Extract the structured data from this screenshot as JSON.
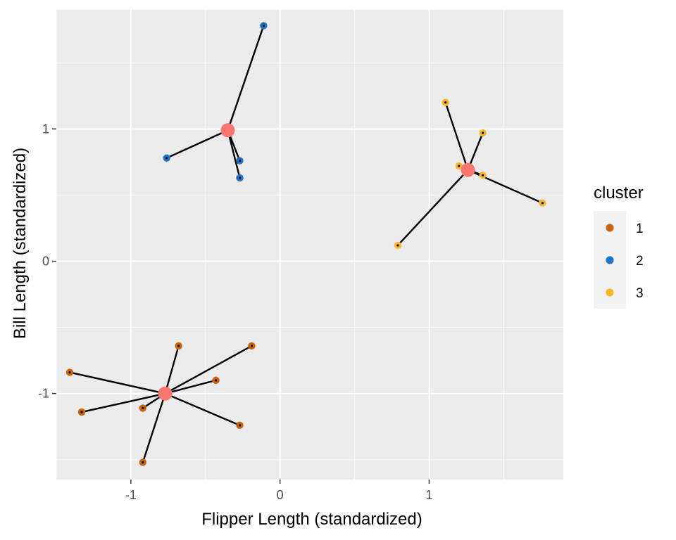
{
  "chart_data": {
    "type": "scatter",
    "xlabel": "Flipper Length (standardized)",
    "ylabel": "Bill Length (standardized)",
    "xlim": [
      -1.5,
      1.9
    ],
    "ylim": [
      -1.65,
      1.9
    ],
    "x_ticks": [
      -1,
      0,
      1
    ],
    "x_tick_labels": [
      "-1",
      "0",
      "1"
    ],
    "y_ticks": [
      -1,
      0,
      1
    ],
    "y_tick_labels": [
      "-1",
      "0",
      "1"
    ],
    "grid": true,
    "legend": {
      "title": "cluster",
      "position": "right",
      "entries": [
        "1",
        "2",
        "3"
      ]
    },
    "colors": {
      "1": "#c8650a",
      "2": "#1e74c9",
      "3": "#f8b72d",
      "centroid": "#f8766d",
      "panel": "#ebebeb",
      "grid_major": "#ffffff",
      "connector": "#000000"
    },
    "centroids": [
      {
        "cluster": "1",
        "x": -0.77,
        "y": -1.0
      },
      {
        "cluster": "2",
        "x": -0.35,
        "y": 0.99
      },
      {
        "cluster": "3",
        "x": 1.26,
        "y": 0.69
      }
    ],
    "series": [
      {
        "name": "1",
        "points": [
          {
            "x": -1.41,
            "y": -0.84
          },
          {
            "x": -1.33,
            "y": -1.14
          },
          {
            "x": -0.92,
            "y": -1.11
          },
          {
            "x": -0.92,
            "y": -1.52
          },
          {
            "x": -0.68,
            "y": -0.64
          },
          {
            "x": -0.43,
            "y": -0.9
          },
          {
            "x": -0.27,
            "y": -1.24
          },
          {
            "x": -0.19,
            "y": -0.64
          }
        ]
      },
      {
        "name": "2",
        "points": [
          {
            "x": -0.76,
            "y": 0.78
          },
          {
            "x": -0.27,
            "y": 0.76
          },
          {
            "x": -0.27,
            "y": 0.63
          },
          {
            "x": -0.11,
            "y": 1.78
          }
        ]
      },
      {
        "name": "3",
        "points": [
          {
            "x": 0.79,
            "y": 0.12
          },
          {
            "x": 1.11,
            "y": 1.2
          },
          {
            "x": 1.2,
            "y": 0.72
          },
          {
            "x": 1.36,
            "y": 0.65
          },
          {
            "x": 1.36,
            "y": 0.97
          },
          {
            "x": 1.76,
            "y": 0.44
          }
        ]
      }
    ]
  }
}
